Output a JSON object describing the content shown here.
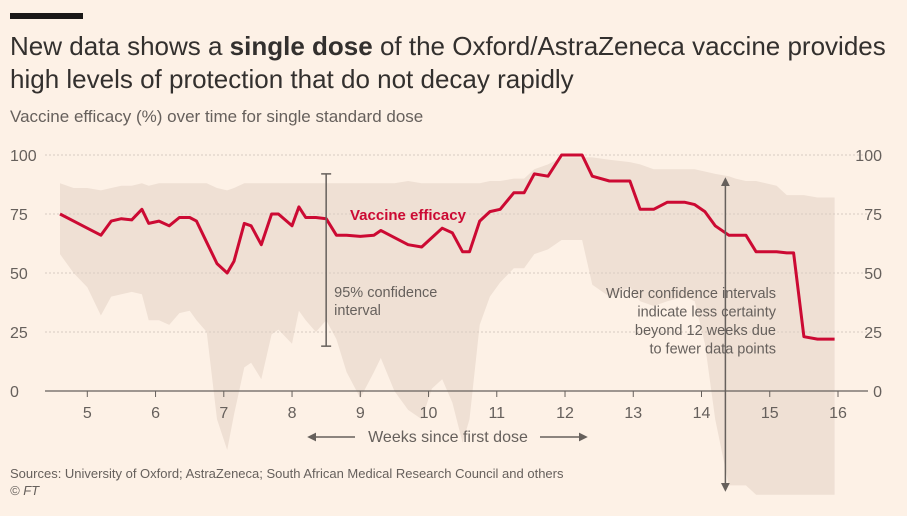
{
  "header": {
    "title_pre": "New data shows a ",
    "title_bold": "single dose",
    "title_post": " of the Oxford/AstraZeneca vaccine provides high levels of protection that do not decay rapidly",
    "subtitle": "Vaccine efficacy (%) over time for single standard dose"
  },
  "footer": {
    "sources": "Sources: University of Oxford; AstraZeneca; South African Medical Research Council and others",
    "credit": "© FT"
  },
  "colors": {
    "line": "#cc0a33",
    "band": "#efe0d4",
    "background": "#fdf1e6",
    "grid": "#d8ccc2"
  },
  "chart_data": {
    "type": "line",
    "title": "Vaccine efficacy (%) over time for single standard dose",
    "xlabel": "Weeks since first dose",
    "ylabel": "",
    "xlim": [
      4.6,
      16.0
    ],
    "ylim": [
      0,
      100
    ],
    "xticks": [
      "5",
      "6",
      "7",
      "8",
      "9",
      "10",
      "11",
      "12",
      "13",
      "14",
      "15",
      "16"
    ],
    "yticks": [
      "0",
      "25",
      "50",
      "75",
      "100"
    ],
    "series": [
      {
        "name": "Vaccine efficacy",
        "x": [
          4.6,
          4.8,
          5.0,
          5.2,
          5.35,
          5.5,
          5.65,
          5.8,
          5.9,
          6.05,
          6.2,
          6.35,
          6.5,
          6.6,
          6.75,
          6.9,
          7.05,
          7.15,
          7.3,
          7.4,
          7.55,
          7.7,
          7.8,
          8.0,
          8.1,
          8.2,
          8.35,
          8.5,
          8.65,
          8.8,
          9.0,
          9.2,
          9.3,
          9.5,
          9.7,
          9.9,
          10.05,
          10.2,
          10.35,
          10.5,
          10.6,
          10.75,
          10.9,
          11.05,
          11.25,
          11.4,
          11.55,
          11.75,
          11.95,
          12.1,
          12.25,
          12.4,
          12.65,
          12.95,
          13.1,
          13.3,
          13.5,
          13.75,
          13.9,
          14.05,
          14.2,
          14.4,
          14.5,
          14.65,
          14.8,
          15.1,
          15.25,
          15.35,
          15.5,
          15.7,
          15.95
        ],
        "values": [
          75,
          72,
          69,
          66,
          72,
          73,
          72.5,
          77,
          71,
          72,
          70,
          73.5,
          73.5,
          72,
          63,
          54,
          50,
          55,
          71,
          70,
          62,
          75,
          75,
          70,
          78,
          73.5,
          73.5,
          73,
          66,
          66,
          65.5,
          66,
          68,
          65,
          62,
          61,
          65,
          69,
          67,
          59,
          59,
          72,
          76,
          77,
          84,
          84,
          92,
          91,
          100,
          100,
          100,
          91,
          89,
          89,
          77,
          77,
          80,
          80,
          79,
          76,
          70,
          66,
          66,
          66,
          59,
          59,
          58.5,
          58.5,
          23,
          22,
          22
        ]
      }
    ],
    "ci_upper": [
      88,
      86,
      86,
      85,
      86,
      87,
      87,
      88,
      87,
      88,
      88,
      88,
      88,
      88,
      88,
      86,
      85,
      86,
      88,
      88,
      88,
      88,
      88,
      88,
      88,
      88,
      88,
      88,
      88,
      88,
      88,
      88,
      88,
      88,
      89,
      88,
      88,
      88,
      88,
      88,
      88,
      88,
      89,
      89,
      90,
      90,
      94,
      96,
      99,
      99,
      99,
      99,
      98,
      97,
      96,
      94,
      94,
      94,
      94,
      93,
      92,
      91,
      90,
      89,
      89,
      87,
      83,
      83,
      83,
      82,
      82
    ],
    "ci_lower": [
      58,
      50,
      44,
      32,
      40,
      41,
      42,
      41,
      30,
      30,
      28,
      33,
      34,
      30,
      25,
      -12,
      -25,
      -10,
      10,
      12,
      5,
      24,
      26,
      20,
      34,
      30,
      25,
      30,
      22,
      8,
      -3,
      8,
      14,
      0,
      -8,
      -12,
      1,
      5,
      -5,
      -22,
      -12,
      28,
      40,
      46,
      52,
      52,
      58,
      60,
      64,
      64,
      64,
      45,
      40,
      44,
      38,
      36,
      38,
      40,
      38,
      20,
      -12,
      -40,
      -40,
      -40,
      -44,
      -44,
      -44,
      -44,
      -44,
      -44,
      -44
    ],
    "annotations": [
      {
        "text_lines": [
          "95% confidence",
          "interval"
        ],
        "x": 8.5,
        "y_range": [
          19,
          92
        ],
        "type": "double-arrow-vertical"
      },
      {
        "text_lines": [
          "Wider confidence intervals",
          "indicate less certainty",
          "beyond 12 weeks due",
          "to fewer data points"
        ],
        "x": 14.35,
        "y_range": [
          -44,
          90
        ],
        "type": "double-arrow-vertical"
      },
      {
        "text": "Vaccine efficacy",
        "x": 9.0,
        "y": 75,
        "type": "series-label"
      },
      {
        "text": "Weeks since first dose",
        "type": "axis-arrow-label",
        "x_range": [
          7.3,
          12.4
        ]
      }
    ]
  }
}
